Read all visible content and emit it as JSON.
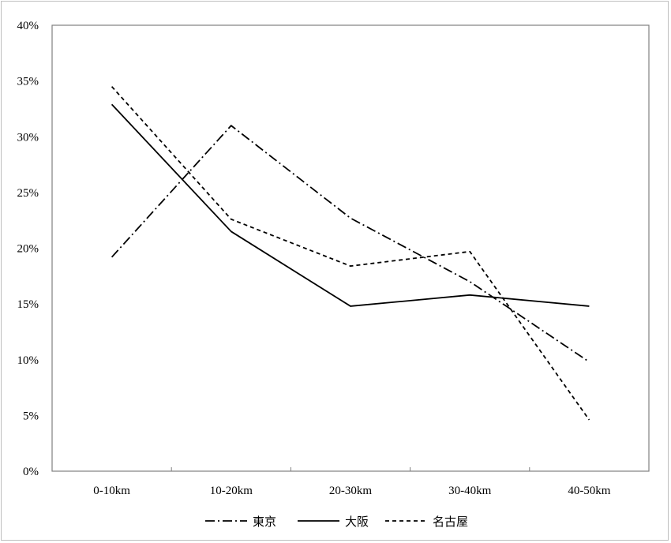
{
  "chart_data": {
    "type": "line",
    "title": "",
    "xlabel": "",
    "ylabel": "",
    "categories": [
      "0-10km",
      "10-20km",
      "20-30km",
      "30-40km",
      "40-50km"
    ],
    "ylim": [
      0,
      0.4
    ],
    "yticks": [
      0,
      0.05,
      0.1,
      0.15,
      0.2,
      0.25,
      0.3,
      0.35,
      0.4
    ],
    "ytick_labels": [
      "0%",
      "5%",
      "10%",
      "15%",
      "20%",
      "25%",
      "30%",
      "35%",
      "40%"
    ],
    "grid": false,
    "legend_position": "bottom",
    "series": [
      {
        "name": "東京",
        "values": [
          0.192,
          0.31,
          0.227,
          0.17,
          0.098
        ],
        "dash": "dash-dot",
        "color": "#000000"
      },
      {
        "name": "大阪",
        "values": [
          0.329,
          0.215,
          0.148,
          0.158,
          0.148
        ],
        "dash": "solid",
        "color": "#000000"
      },
      {
        "name": "名古屋",
        "values": [
          0.345,
          0.226,
          0.184,
          0.197,
          0.046
        ],
        "dash": "dashed",
        "color": "#000000"
      }
    ]
  }
}
